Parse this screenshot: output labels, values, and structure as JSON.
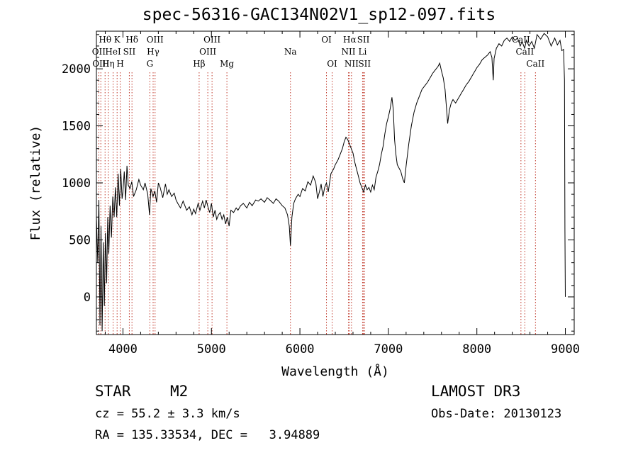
{
  "header": {
    "title": "spec-56316-GAC134N02V1_sp12-097.fits"
  },
  "info": {
    "obj_class": "STAR",
    "obj_subclass": "M2",
    "survey": "LAMOST DR3",
    "cz_line": "cz = 55.2 ± 3.3 km/s",
    "obs_date_line": "Obs-Date: 20130123",
    "radec_line": "RA = 135.33534, DEC =   3.94889"
  },
  "chart_data": {
    "type": "line",
    "xlabel": "Wavelength (Å)",
    "ylabel": "Flux (relative)",
    "xlim": [
      3700,
      9100
    ],
    "ylim": [
      -330,
      2330
    ],
    "xticks": [
      4000,
      5000,
      6000,
      7000,
      8000,
      9000
    ],
    "yticks": [
      0,
      500,
      1000,
      1500,
      2000
    ],
    "grid": false,
    "line_color": "#000000",
    "marker_color": "#c0392b",
    "series": [
      {
        "values": [
          [
            3700,
            700
          ],
          [
            3715,
            300
          ],
          [
            3728,
            850
          ],
          [
            3740,
            -250
          ],
          [
            3752,
            620
          ],
          [
            3765,
            -300
          ],
          [
            3778,
            480
          ],
          [
            3790,
            -80
          ],
          [
            3802,
            560
          ],
          [
            3815,
            120
          ],
          [
            3828,
            700
          ],
          [
            3840,
            380
          ],
          [
            3855,
            800
          ],
          [
            3870,
            520
          ],
          [
            3885,
            880
          ],
          [
            3900,
            700
          ],
          [
            3915,
            960
          ],
          [
            3930,
            700
          ],
          [
            3945,
            1080
          ],
          [
            3960,
            800
          ],
          [
            3975,
            1120
          ],
          [
            3990,
            860
          ],
          [
            4000,
            920
          ],
          [
            4015,
            1100
          ],
          [
            4030,
            850
          ],
          [
            4045,
            1150
          ],
          [
            4060,
            980
          ],
          [
            4080,
            950
          ],
          [
            4100,
            1010
          ],
          [
            4120,
            880
          ],
          [
            4150,
            940
          ],
          [
            4180,
            1030
          ],
          [
            4200,
            980
          ],
          [
            4230,
            940
          ],
          [
            4250,
            1000
          ],
          [
            4280,
            900
          ],
          [
            4300,
            720
          ],
          [
            4315,
            950
          ],
          [
            4340,
            880
          ],
          [
            4360,
            930
          ],
          [
            4380,
            830
          ],
          [
            4400,
            1000
          ],
          [
            4420,
            960
          ],
          [
            4450,
            870
          ],
          [
            4480,
            990
          ],
          [
            4500,
            900
          ],
          [
            4520,
            940
          ],
          [
            4550,
            880
          ],
          [
            4580,
            910
          ],
          [
            4600,
            850
          ],
          [
            4620,
            820
          ],
          [
            4650,
            780
          ],
          [
            4680,
            840
          ],
          [
            4700,
            800
          ],
          [
            4720,
            760
          ],
          [
            4750,
            790
          ],
          [
            4780,
            720
          ],
          [
            4800,
            770
          ],
          [
            4820,
            730
          ],
          [
            4850,
            820
          ],
          [
            4870,
            760
          ],
          [
            4900,
            840
          ],
          [
            4920,
            780
          ],
          [
            4940,
            850
          ],
          [
            4960,
            790
          ],
          [
            4980,
            740
          ],
          [
            5000,
            820
          ],
          [
            5020,
            700
          ],
          [
            5040,
            760
          ],
          [
            5060,
            680
          ],
          [
            5080,
            720
          ],
          [
            5100,
            740
          ],
          [
            5120,
            680
          ],
          [
            5140,
            720
          ],
          [
            5160,
            640
          ],
          [
            5180,
            700
          ],
          [
            5200,
            620
          ],
          [
            5220,
            760
          ],
          [
            5250,
            740
          ],
          [
            5280,
            780
          ],
          [
            5300,
            760
          ],
          [
            5330,
            800
          ],
          [
            5360,
            820
          ],
          [
            5400,
            780
          ],
          [
            5430,
            830
          ],
          [
            5460,
            800
          ],
          [
            5500,
            850
          ],
          [
            5530,
            840
          ],
          [
            5560,
            860
          ],
          [
            5600,
            830
          ],
          [
            5630,
            870
          ],
          [
            5660,
            850
          ],
          [
            5700,
            820
          ],
          [
            5730,
            860
          ],
          [
            5760,
            840
          ],
          [
            5800,
            800
          ],
          [
            5830,
            780
          ],
          [
            5860,
            720
          ],
          [
            5880,
            620
          ],
          [
            5893,
            450
          ],
          [
            5900,
            560
          ],
          [
            5910,
            700
          ],
          [
            5930,
            820
          ],
          [
            5950,
            860
          ],
          [
            5980,
            900
          ],
          [
            6000,
            880
          ],
          [
            6030,
            950
          ],
          [
            6060,
            930
          ],
          [
            6090,
            1010
          ],
          [
            6120,
            980
          ],
          [
            6150,
            1060
          ],
          [
            6180,
            1000
          ],
          [
            6200,
            860
          ],
          [
            6220,
            920
          ],
          [
            6240,
            990
          ],
          [
            6260,
            880
          ],
          [
            6280,
            960
          ],
          [
            6300,
            1000
          ],
          [
            6320,
            920
          ],
          [
            6350,
            1080
          ],
          [
            6380,
            1120
          ],
          [
            6400,
            1160
          ],
          [
            6430,
            1200
          ],
          [
            6460,
            1260
          ],
          [
            6480,
            1300
          ],
          [
            6500,
            1360
          ],
          [
            6520,
            1400
          ],
          [
            6540,
            1380
          ],
          [
            6560,
            1340
          ],
          [
            6580,
            1300
          ],
          [
            6600,
            1260
          ],
          [
            6620,
            1180
          ],
          [
            6640,
            1120
          ],
          [
            6660,
            1060
          ],
          [
            6680,
            1000
          ],
          [
            6700,
            960
          ],
          [
            6720,
            920
          ],
          [
            6740,
            980
          ],
          [
            6760,
            940
          ],
          [
            6780,
            960
          ],
          [
            6800,
            920
          ],
          [
            6820,
            980
          ],
          [
            6840,
            940
          ],
          [
            6860,
            1050
          ],
          [
            6880,
            1100
          ],
          [
            6900,
            1160
          ],
          [
            6920,
            1250
          ],
          [
            6940,
            1320
          ],
          [
            6960,
            1430
          ],
          [
            6980,
            1520
          ],
          [
            7000,
            1580
          ],
          [
            7020,
            1650
          ],
          [
            7040,
            1750
          ],
          [
            7055,
            1640
          ],
          [
            7070,
            1380
          ],
          [
            7085,
            1250
          ],
          [
            7100,
            1160
          ],
          [
            7120,
            1130
          ],
          [
            7140,
            1100
          ],
          [
            7160,
            1040
          ],
          [
            7180,
            1000
          ],
          [
            7200,
            1150
          ],
          [
            7230,
            1340
          ],
          [
            7260,
            1500
          ],
          [
            7290,
            1620
          ],
          [
            7320,
            1700
          ],
          [
            7350,
            1760
          ],
          [
            7380,
            1820
          ],
          [
            7410,
            1850
          ],
          [
            7440,
            1880
          ],
          [
            7470,
            1920
          ],
          [
            7500,
            1960
          ],
          [
            7530,
            1990
          ],
          [
            7560,
            2020
          ],
          [
            7580,
            2050
          ],
          [
            7600,
            1980
          ],
          [
            7620,
            1920
          ],
          [
            7640,
            1820
          ],
          [
            7660,
            1620
          ],
          [
            7670,
            1520
          ],
          [
            7690,
            1640
          ],
          [
            7710,
            1700
          ],
          [
            7730,
            1730
          ],
          [
            7760,
            1700
          ],
          [
            7790,
            1740
          ],
          [
            7820,
            1780
          ],
          [
            7850,
            1820
          ],
          [
            7880,
            1860
          ],
          [
            7910,
            1890
          ],
          [
            7940,
            1930
          ],
          [
            7970,
            1970
          ],
          [
            8000,
            2010
          ],
          [
            8030,
            2040
          ],
          [
            8060,
            2080
          ],
          [
            8090,
            2100
          ],
          [
            8120,
            2120
          ],
          [
            8150,
            2150
          ],
          [
            8170,
            2100
          ],
          [
            8185,
            1900
          ],
          [
            8195,
            2090
          ],
          [
            8220,
            2180
          ],
          [
            8250,
            2220
          ],
          [
            8280,
            2200
          ],
          [
            8310,
            2250
          ],
          [
            8340,
            2270
          ],
          [
            8370,
            2240
          ],
          [
            8400,
            2280
          ],
          [
            8430,
            2250
          ],
          [
            8460,
            2270
          ],
          [
            8490,
            2200
          ],
          [
            8510,
            2240
          ],
          [
            8540,
            2180
          ],
          [
            8560,
            2250
          ],
          [
            8590,
            2200
          ],
          [
            8620,
            2240
          ],
          [
            8650,
            2180
          ],
          [
            8680,
            2300
          ],
          [
            8720,
            2260
          ],
          [
            8760,
            2310
          ],
          [
            8800,
            2280
          ],
          [
            8840,
            2200
          ],
          [
            8880,
            2270
          ],
          [
            8910,
            2210
          ],
          [
            8940,
            2250
          ],
          [
            8960,
            2160
          ],
          [
            8980,
            2170
          ],
          [
            8990,
            1900
          ],
          [
            8995,
            600
          ],
          [
            9000,
            0
          ]
        ]
      }
    ],
    "lines": [
      {
        "wavelength": 3727,
        "label": "OII",
        "row": 1
      },
      {
        "wavelength": 3750,
        "label": "OIII",
        "row": 2
      },
      {
        "wavelength": 3798,
        "label": "Hθ",
        "row": 0
      },
      {
        "wavelength": 3835,
        "label": "Hη",
        "row": 2
      },
      {
        "wavelength": 3889,
        "label": "HeI",
        "row": 1
      },
      {
        "wavelength": 3934,
        "label": "K",
        "row": 0
      },
      {
        "wavelength": 3969,
        "label": "H",
        "row": 2
      },
      {
        "wavelength": 4072,
        "label": "SII",
        "row": 1
      },
      {
        "wavelength": 4102,
        "label": "Hδ",
        "row": 0
      },
      {
        "wavelength": 4304,
        "label": "G",
        "row": 2
      },
      {
        "wavelength": 4341,
        "label": "Hγ",
        "row": 1
      },
      {
        "wavelength": 4363,
        "label": "OIII",
        "row": 0
      },
      {
        "wavelength": 4861,
        "label": "Hβ",
        "row": 2
      },
      {
        "wavelength": 4959,
        "label": "OIII",
        "row": 1
      },
      {
        "wavelength": 5007,
        "label": "OIII",
        "row": 0
      },
      {
        "wavelength": 5175,
        "label": "Mg",
        "row": 2
      },
      {
        "wavelength": 5893,
        "label": "Na",
        "row": 1
      },
      {
        "wavelength": 6300,
        "label": "OI",
        "row": 0
      },
      {
        "wavelength": 6364,
        "label": "OI",
        "row": 2
      },
      {
        "wavelength": 6548,
        "label": "NII",
        "row": 1
      },
      {
        "wavelength": 6563,
        "label": "Hα",
        "row": 0
      },
      {
        "wavelength": 6583,
        "label": "NII",
        "row": 2
      },
      {
        "wavelength": 6708,
        "label": "Li",
        "row": 1
      },
      {
        "wavelength": 6717,
        "label": "SII",
        "row": 0
      },
      {
        "wavelength": 6731,
        "label": "SII",
        "row": 2
      },
      {
        "wavelength": 8498,
        "label": "CaII",
        "row": 0
      },
      {
        "wavelength": 8542,
        "label": "CaII",
        "row": 1
      },
      {
        "wavelength": 8662,
        "label": "CaII",
        "row": 2
      }
    ]
  }
}
